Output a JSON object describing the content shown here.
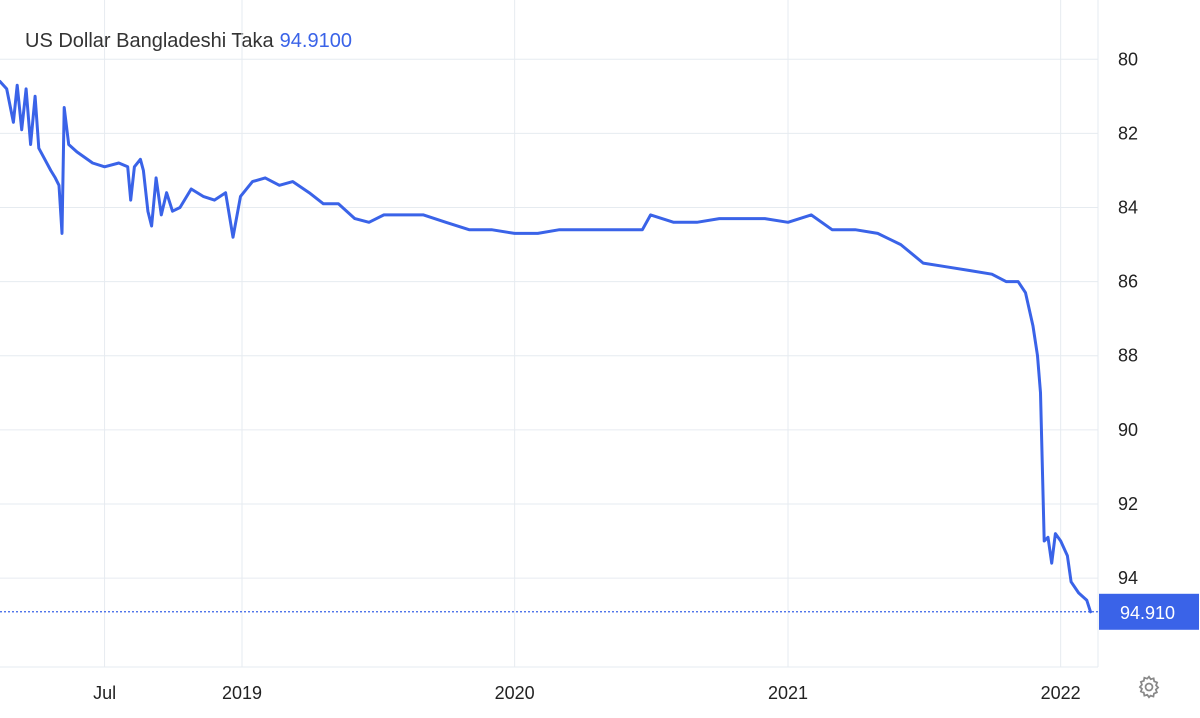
{
  "colors": {
    "series": "#3a63e8",
    "grid": "#e6ebf0",
    "axis_text": "#222222"
  },
  "title": {
    "name": "US Dollar Bangladeshi Taka",
    "value": "94.9100"
  },
  "settings": {
    "icon": "gear-icon"
  },
  "chart_data": {
    "type": "line",
    "title": "US Dollar Bangladeshi Taka",
    "y_axis": {
      "side": "right",
      "inverted": true,
      "range": [
        78.4,
        96.4
      ],
      "ticks": [
        "80",
        "82",
        "84",
        "86",
        "88",
        "90",
        "92",
        "94"
      ]
    },
    "x_axis": {
      "range": [
        "2018-02-11",
        "2022-02-20"
      ],
      "ticks": [
        {
          "label": "Jul",
          "date": "2018-07-01"
        },
        {
          "label": "2019",
          "date": "2019-01-01"
        },
        {
          "label": "2020",
          "date": "2020-01-01"
        },
        {
          "label": "2021",
          "date": "2021-01-01"
        },
        {
          "label": "2022",
          "date": "2022-01-01"
        }
      ]
    },
    "grid": true,
    "last_value": {
      "label": "94.910",
      "value": 94.91
    },
    "series": [
      {
        "values": [
          [
            "2018-02-11",
            80.6
          ],
          [
            "2018-02-20",
            80.8
          ],
          [
            "2018-03-01",
            81.7
          ],
          [
            "2018-03-06",
            80.7
          ],
          [
            "2018-03-12",
            81.9
          ],
          [
            "2018-03-18",
            80.8
          ],
          [
            "2018-03-24",
            82.3
          ],
          [
            "2018-03-30",
            81.0
          ],
          [
            "2018-04-04",
            82.4
          ],
          [
            "2018-04-12",
            82.7
          ],
          [
            "2018-04-20",
            83.0
          ],
          [
            "2018-04-26",
            83.2
          ],
          [
            "2018-05-01",
            83.4
          ],
          [
            "2018-05-05",
            84.7
          ],
          [
            "2018-05-08",
            81.3
          ],
          [
            "2018-05-14",
            82.3
          ],
          [
            "2018-05-25",
            82.5
          ],
          [
            "2018-06-15",
            82.8
          ],
          [
            "2018-07-01",
            82.9
          ],
          [
            "2018-07-20",
            82.8
          ],
          [
            "2018-08-01",
            82.9
          ],
          [
            "2018-08-05",
            83.8
          ],
          [
            "2018-08-10",
            82.9
          ],
          [
            "2018-08-18",
            82.7
          ],
          [
            "2018-08-22",
            83.0
          ],
          [
            "2018-08-28",
            84.1
          ],
          [
            "2018-09-02",
            84.5
          ],
          [
            "2018-09-08",
            83.2
          ],
          [
            "2018-09-15",
            84.2
          ],
          [
            "2018-09-22",
            83.6
          ],
          [
            "2018-09-30",
            84.1
          ],
          [
            "2018-10-10",
            84.0
          ],
          [
            "2018-10-25",
            83.5
          ],
          [
            "2018-11-10",
            83.7
          ],
          [
            "2018-11-25",
            83.8
          ],
          [
            "2018-12-10",
            83.6
          ],
          [
            "2018-12-20",
            84.8
          ],
          [
            "2018-12-30",
            83.7
          ],
          [
            "2019-01-15",
            83.3
          ],
          [
            "2019-02-01",
            83.2
          ],
          [
            "2019-02-20",
            83.4
          ],
          [
            "2019-03-10",
            83.3
          ],
          [
            "2019-04-01",
            83.6
          ],
          [
            "2019-04-20",
            83.9
          ],
          [
            "2019-05-10",
            83.9
          ],
          [
            "2019-06-01",
            84.3
          ],
          [
            "2019-06-20",
            84.4
          ],
          [
            "2019-07-10",
            84.2
          ],
          [
            "2019-08-01",
            84.2
          ],
          [
            "2019-09-01",
            84.2
          ],
          [
            "2019-10-01",
            84.4
          ],
          [
            "2019-11-01",
            84.6
          ],
          [
            "2019-12-01",
            84.6
          ],
          [
            "2020-01-01",
            84.7
          ],
          [
            "2020-02-01",
            84.7
          ],
          [
            "2020-03-01",
            84.6
          ],
          [
            "2020-04-01",
            84.6
          ],
          [
            "2020-05-01",
            84.6
          ],
          [
            "2020-06-01",
            84.6
          ],
          [
            "2020-06-20",
            84.6
          ],
          [
            "2020-07-01",
            84.2
          ],
          [
            "2020-08-01",
            84.4
          ],
          [
            "2020-09-01",
            84.4
          ],
          [
            "2020-10-01",
            84.3
          ],
          [
            "2020-11-01",
            84.3
          ],
          [
            "2020-12-01",
            84.3
          ],
          [
            "2021-01-01",
            84.4
          ],
          [
            "2021-02-01",
            84.2
          ],
          [
            "2021-03-01",
            84.6
          ],
          [
            "2021-04-01",
            84.6
          ],
          [
            "2021-05-01",
            84.7
          ],
          [
            "2021-06-01",
            85.0
          ],
          [
            "2021-07-01",
            85.5
          ],
          [
            "2021-08-01",
            85.6
          ],
          [
            "2021-09-01",
            85.7
          ],
          [
            "2021-10-01",
            85.8
          ],
          [
            "2021-10-20",
            86.0
          ],
          [
            "2021-11-05",
            86.0
          ],
          [
            "2021-11-15",
            86.3
          ],
          [
            "2021-11-25",
            87.2
          ],
          [
            "2021-12-01",
            88.0
          ],
          [
            "2021-12-05",
            89.0
          ],
          [
            "2021-12-10",
            93.0
          ],
          [
            "2021-12-15",
            92.9
          ],
          [
            "2021-12-20",
            93.6
          ],
          [
            "2021-12-25",
            92.8
          ],
          [
            "2022-01-01",
            93.0
          ],
          [
            "2022-01-10",
            93.4
          ],
          [
            "2022-01-15",
            94.1
          ],
          [
            "2022-01-25",
            94.4
          ],
          [
            "2022-02-05",
            94.6
          ],
          [
            "2022-02-10",
            94.91
          ]
        ]
      }
    ]
  }
}
